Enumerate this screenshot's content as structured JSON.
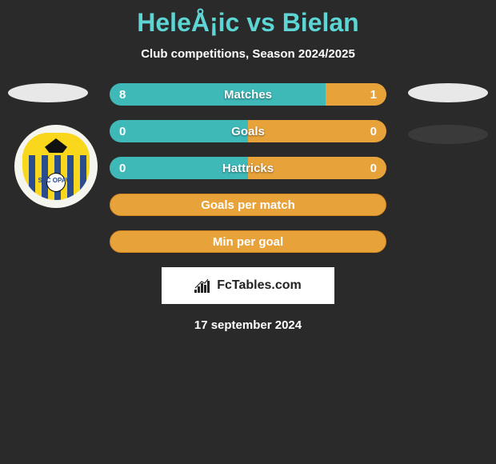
{
  "title": "HeleÅ¡ic vs Bielan",
  "subtitle": "Club competitions, Season 2024/2025",
  "colors": {
    "background": "#2a2a2a",
    "title_color": "#5dd5d5",
    "teal": "#3fb8b8",
    "orange": "#e8a23a",
    "orange_border": "#d48820",
    "badge_bg": "#f5f5f0",
    "badge_yellow": "#f9d71c",
    "badge_blue": "#2a4b8d"
  },
  "left_player": {
    "oval_color": "#e8e8e8",
    "badge_text": "SFC OPAVA"
  },
  "right_player": {
    "oval1_color": "#e8e8e8",
    "oval2_color": "#3a3a3a"
  },
  "bars": [
    {
      "type": "split",
      "label": "Matches",
      "left_val": "8",
      "right_val": "1",
      "left_pct": 78,
      "right_pct": 22,
      "left_color": "#3fb8b8",
      "right_color": "#e8a23a"
    },
    {
      "type": "split",
      "label": "Goals",
      "left_val": "0",
      "right_val": "0",
      "left_pct": 50,
      "right_pct": 50,
      "left_color": "#3fb8b8",
      "right_color": "#e8a23a"
    },
    {
      "type": "split",
      "label": "Hattricks",
      "left_val": "0",
      "right_val": "0",
      "left_pct": 50,
      "right_pct": 50,
      "left_color": "#3fb8b8",
      "right_color": "#e8a23a"
    },
    {
      "type": "simple",
      "label": "Goals per match",
      "bg_color": "#e8a23a",
      "border_color": "#d48820"
    },
    {
      "type": "simple",
      "label": "Min per goal",
      "bg_color": "#e8a23a",
      "border_color": "#d48820"
    }
  ],
  "footer": {
    "brand": "FcTables.com",
    "date": "17 september 2024"
  }
}
